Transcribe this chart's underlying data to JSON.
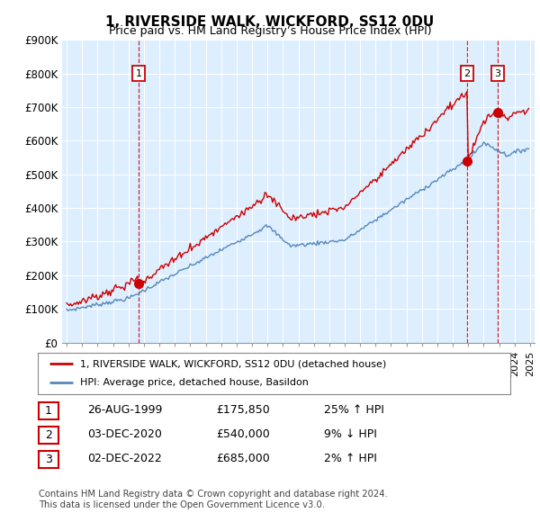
{
  "title": "1, RIVERSIDE WALK, WICKFORD, SS12 0DU",
  "subtitle": "Price paid vs. HM Land Registry’s House Price Index (HPI)",
  "red_line_color": "#cc0000",
  "blue_line_color": "#5588bb",
  "background_color": "#ffffff",
  "chart_bg_color": "#ddeeff",
  "grid_color": "#ffffff",
  "sale_dates_num": [
    1999.65,
    2020.92,
    2022.92
  ],
  "sale_prices": [
    175850,
    540000,
    685000
  ],
  "sale_labels": [
    "1",
    "2",
    "3"
  ],
  "ylim": [
    0,
    900000
  ],
  "yticks": [
    0,
    100000,
    200000,
    300000,
    400000,
    500000,
    600000,
    700000,
    800000,
    900000
  ],
  "ytick_labels": [
    "£0",
    "£100K",
    "£200K",
    "£300K",
    "£400K",
    "£500K",
    "£600K",
    "£700K",
    "£800K",
    "£900K"
  ],
  "xlim_start": 1994.7,
  "xlim_end": 2025.3,
  "legend_label_red": "1, RIVERSIDE WALK, WICKFORD, SS12 0DU (detached house)",
  "legend_label_blue": "HPI: Average price, detached house, Basildon",
  "table_rows": [
    {
      "num": "1",
      "date": "26-AUG-1999",
      "price": "£175,850",
      "hpi": "25% ↑ HPI"
    },
    {
      "num": "2",
      "date": "03-DEC-2020",
      "price": "£540,000",
      "hpi": "9% ↓ HPI"
    },
    {
      "num": "3",
      "date": "02-DEC-2022",
      "price": "£685,000",
      "hpi": "2% ↑ HPI"
    }
  ],
  "footnote1": "Contains HM Land Registry data © Crown copyright and database right 2024.",
  "footnote2": "This data is licensed under the Open Government Licence v3.0."
}
